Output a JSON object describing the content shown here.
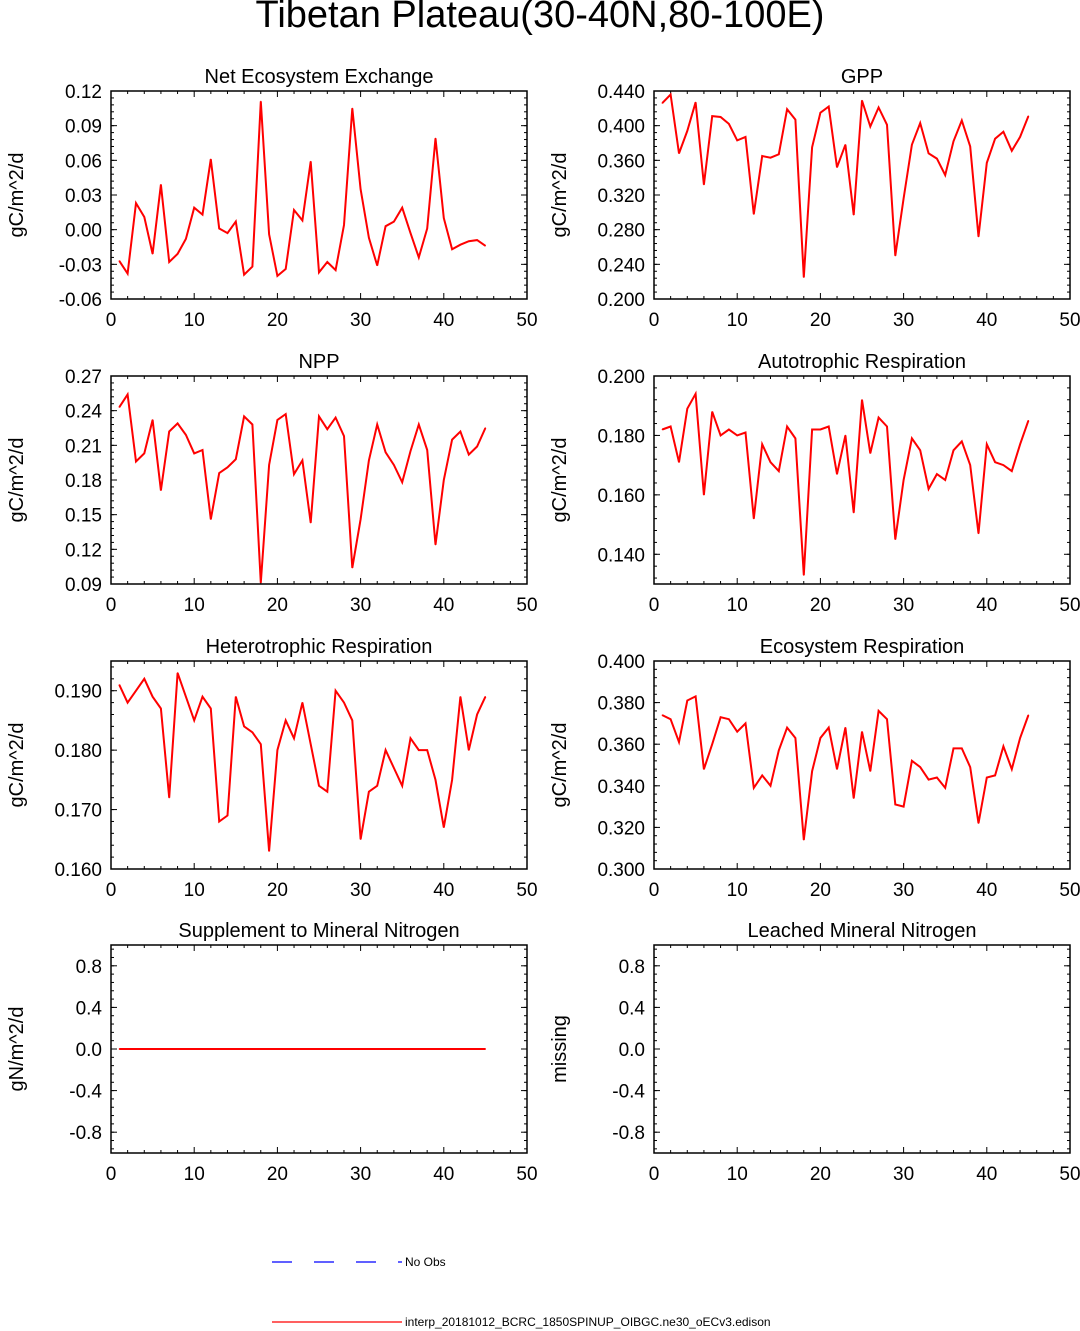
{
  "figure": {
    "title": "Tibetan Plateau(30-40N,80-100E)",
    "legend": {
      "obs_label": "No Obs",
      "obs_color": "#0000ff",
      "model_label": "interp_20181012_BCRC_1850SPINUP_OIBGC.ne30_oECv3.edison",
      "model_color": "#ff0000"
    }
  },
  "chart_data": [
    {
      "type": "line",
      "title": "Net Ecosystem Exchange",
      "ylabel": "gC/m^2/d",
      "xlim": [
        0,
        50
      ],
      "xticks": [
        0,
        10,
        20,
        30,
        40,
        50
      ],
      "ylim": [
        -0.06,
        0.12
      ],
      "yticks": [
        -0.06,
        -0.03,
        0.0,
        0.03,
        0.06,
        0.09,
        0.12
      ],
      "ytick_labels": [
        "-0.06",
        "-0.03",
        "0.00",
        "0.03",
        "0.06",
        "0.09",
        "0.12"
      ],
      "grid": false,
      "series": [
        {
          "values": [
            -0.027,
            -0.038,
            0.023,
            0.011,
            -0.021,
            0.039,
            -0.028,
            -0.021,
            -0.008,
            0.019,
            0.013,
            0.061,
            0.001,
            -0.003,
            0.007,
            -0.039,
            -0.032,
            0.111,
            -0.004,
            -0.04,
            -0.034,
            0.017,
            0.008,
            0.059,
            -0.037,
            -0.028,
            -0.035,
            0.004,
            0.105,
            0.035,
            -0.007,
            -0.031,
            0.003,
            0.007,
            0.019,
            -0.003,
            -0.024,
            0.001,
            0.079,
            0.01,
            -0.017,
            -0.013,
            -0.01,
            -0.009,
            -0.014
          ]
        }
      ]
    },
    {
      "type": "line",
      "title": "GPP",
      "ylabel": "gC/m^2/d",
      "xlim": [
        0,
        50
      ],
      "xticks": [
        0,
        10,
        20,
        30,
        40,
        50
      ],
      "ylim": [
        0.2,
        0.44
      ],
      "yticks": [
        0.2,
        0.24,
        0.28,
        0.32,
        0.36,
        0.4,
        0.44
      ],
      "ytick_labels": [
        "0.200",
        "0.240",
        "0.280",
        "0.320",
        "0.360",
        "0.400",
        "0.440"
      ],
      "grid": false,
      "series": [
        {
          "values": [
            0.426,
            0.436,
            0.368,
            0.394,
            0.427,
            0.332,
            0.411,
            0.41,
            0.402,
            0.383,
            0.387,
            0.298,
            0.365,
            0.363,
            0.367,
            0.419,
            0.407,
            0.225,
            0.375,
            0.415,
            0.422,
            0.352,
            0.378,
            0.297,
            0.429,
            0.399,
            0.421,
            0.401,
            0.25,
            0.316,
            0.378,
            0.403,
            0.368,
            0.362,
            0.343,
            0.382,
            0.406,
            0.376,
            0.272,
            0.357,
            0.385,
            0.393,
            0.371,
            0.387,
            0.411
          ]
        }
      ]
    },
    {
      "type": "line",
      "title": "NPP",
      "ylabel": "gC/m^2/d",
      "xlim": [
        0,
        50
      ],
      "xticks": [
        0,
        10,
        20,
        30,
        40,
        50
      ],
      "ylim": [
        0.09,
        0.27
      ],
      "yticks": [
        0.09,
        0.12,
        0.15,
        0.18,
        0.21,
        0.24,
        0.27
      ],
      "ytick_labels": [
        "0.09",
        "0.12",
        "0.15",
        "0.18",
        "0.21",
        "0.24",
        "0.27"
      ],
      "grid": false,
      "series": [
        {
          "values": [
            0.243,
            0.254,
            0.196,
            0.203,
            0.232,
            0.171,
            0.222,
            0.229,
            0.219,
            0.203,
            0.206,
            0.146,
            0.186,
            0.191,
            0.198,
            0.235,
            0.228,
            0.091,
            0.193,
            0.232,
            0.237,
            0.185,
            0.197,
            0.143,
            0.235,
            0.224,
            0.234,
            0.218,
            0.104,
            0.146,
            0.197,
            0.228,
            0.204,
            0.193,
            0.178,
            0.205,
            0.228,
            0.206,
            0.124,
            0.18,
            0.215,
            0.222,
            0.202,
            0.209,
            0.225
          ]
        }
      ]
    },
    {
      "type": "line",
      "title": "Autotrophic Respiration",
      "ylabel": "gC/m^2/d",
      "xlim": [
        0,
        50
      ],
      "xticks": [
        0,
        10,
        20,
        30,
        40,
        50
      ],
      "ylim": [
        0.13,
        0.2
      ],
      "yticks": [
        0.14,
        0.16,
        0.18,
        0.2
      ],
      "ytick_labels": [
        "0.140",
        "0.160",
        "0.180",
        "0.200"
      ],
      "grid": false,
      "series": [
        {
          "values": [
            0.182,
            0.183,
            0.171,
            0.189,
            0.194,
            0.16,
            0.188,
            0.18,
            0.182,
            0.18,
            0.181,
            0.152,
            0.177,
            0.171,
            0.168,
            0.183,
            0.179,
            0.133,
            0.182,
            0.182,
            0.183,
            0.167,
            0.18,
            0.154,
            0.192,
            0.174,
            0.186,
            0.183,
            0.145,
            0.165,
            0.179,
            0.175,
            0.162,
            0.167,
            0.165,
            0.175,
            0.178,
            0.17,
            0.147,
            0.177,
            0.171,
            0.17,
            0.168,
            0.177,
            0.185
          ]
        }
      ]
    },
    {
      "type": "line",
      "title": "Heterotrophic Respiration",
      "ylabel": "gC/m^2/d",
      "xlim": [
        0,
        50
      ],
      "xticks": [
        0,
        10,
        20,
        30,
        40,
        50
      ],
      "ylim": [
        0.16,
        0.195
      ],
      "yticks": [
        0.16,
        0.17,
        0.18,
        0.19
      ],
      "ytick_labels": [
        "0.160",
        "0.170",
        "0.180",
        "0.190"
      ],
      "grid": false,
      "series": [
        {
          "values": [
            0.191,
            0.188,
            0.19,
            0.192,
            0.189,
            0.187,
            0.172,
            0.193,
            0.189,
            0.185,
            0.189,
            0.187,
            0.168,
            0.169,
            0.189,
            0.184,
            0.183,
            0.181,
            0.163,
            0.18,
            0.185,
            0.182,
            0.188,
            0.181,
            0.174,
            0.173,
            0.19,
            0.188,
            0.185,
            0.165,
            0.173,
            0.174,
            0.18,
            0.177,
            0.174,
            0.182,
            0.18,
            0.18,
            0.175,
            0.167,
            0.175,
            0.189,
            0.18,
            0.186,
            0.189
          ]
        }
      ]
    },
    {
      "type": "line",
      "title": "Ecosystem Respiration",
      "ylabel": "gC/m^2/d",
      "xlim": [
        0,
        50
      ],
      "xticks": [
        0,
        10,
        20,
        30,
        40,
        50
      ],
      "ylim": [
        0.3,
        0.4
      ],
      "yticks": [
        0.3,
        0.32,
        0.34,
        0.36,
        0.38,
        0.4
      ],
      "ytick_labels": [
        "0.300",
        "0.320",
        "0.340",
        "0.360",
        "0.380",
        "0.400"
      ],
      "grid": false,
      "series": [
        {
          "values": [
            0.374,
            0.372,
            0.361,
            0.381,
            0.383,
            0.348,
            0.36,
            0.373,
            0.372,
            0.366,
            0.37,
            0.339,
            0.345,
            0.34,
            0.357,
            0.368,
            0.363,
            0.314,
            0.347,
            0.363,
            0.368,
            0.348,
            0.368,
            0.334,
            0.366,
            0.347,
            0.376,
            0.372,
            0.331,
            0.33,
            0.352,
            0.349,
            0.343,
            0.344,
            0.339,
            0.358,
            0.358,
            0.349,
            0.322,
            0.344,
            0.345,
            0.359,
            0.348,
            0.363,
            0.374
          ]
        }
      ]
    },
    {
      "type": "line",
      "title": "Supplement to Mineral Nitrogen",
      "ylabel": "gN/m^2/d",
      "xlim": [
        0,
        50
      ],
      "xticks": [
        0,
        10,
        20,
        30,
        40,
        50
      ],
      "ylim": [
        -1.0,
        1.0
      ],
      "yticks": [
        -0.8,
        -0.4,
        0.0,
        0.4,
        0.8
      ],
      "ytick_labels": [
        "-0.8",
        "-0.4",
        "0.0",
        "0.4",
        "0.8"
      ],
      "grid": false,
      "series": [
        {
          "values": [
            0,
            0,
            0,
            0,
            0,
            0,
            0,
            0,
            0,
            0,
            0,
            0,
            0,
            0,
            0,
            0,
            0,
            0,
            0,
            0,
            0,
            0,
            0,
            0,
            0,
            0,
            0,
            0,
            0,
            0,
            0,
            0,
            0,
            0,
            0,
            0,
            0,
            0,
            0,
            0,
            0,
            0,
            0,
            0,
            0
          ]
        }
      ]
    },
    {
      "type": "line",
      "title": "Leached Mineral Nitrogen",
      "ylabel": "missing",
      "xlim": [
        0,
        50
      ],
      "xticks": [
        0,
        10,
        20,
        30,
        40,
        50
      ],
      "ylim": [
        -1.0,
        1.0
      ],
      "yticks": [
        -0.8,
        -0.4,
        0.0,
        0.4,
        0.8
      ],
      "ytick_labels": [
        "-0.8",
        "-0.4",
        "0.0",
        "0.4",
        "0.8"
      ],
      "grid": false,
      "series": []
    }
  ]
}
